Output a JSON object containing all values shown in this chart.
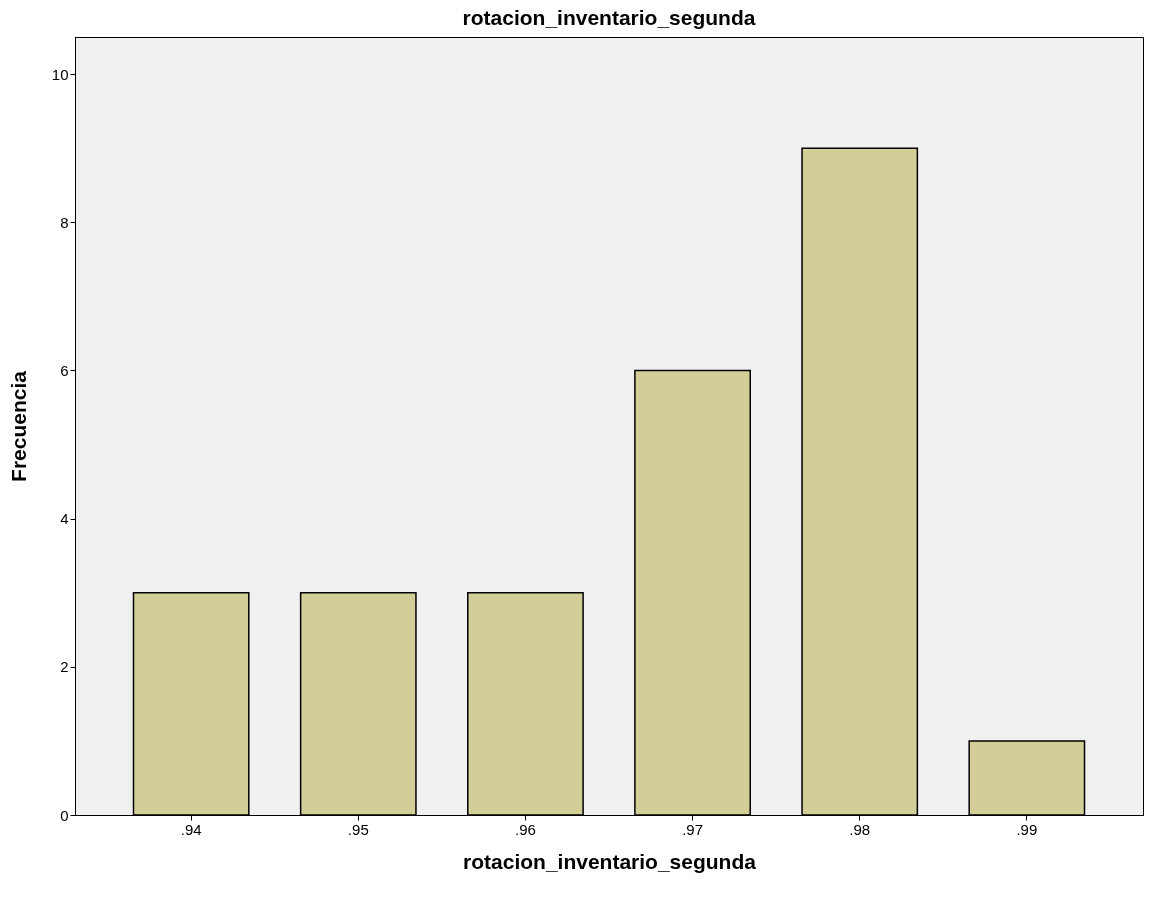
{
  "chart_data": {
    "type": "bar",
    "title": "rotacion_inventario_segunda",
    "xlabel": "rotacion_inventario_segunda",
    "ylabel": "Frecuencia",
    "categories": [
      ".94",
      ".95",
      ".96",
      ".97",
      ".98",
      ".99"
    ],
    "values": [
      3,
      3,
      3,
      6,
      9,
      1
    ],
    "color": "#d3ce97",
    "ylim": [
      0,
      10.5
    ],
    "yticks": [
      0,
      2,
      4,
      6,
      8,
      10
    ],
    "grid": false
  }
}
